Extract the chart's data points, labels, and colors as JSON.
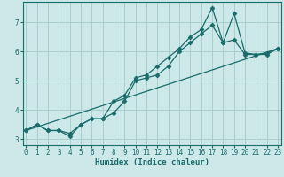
{
  "xlabel": "Humidex (Indice chaleur)",
  "bg_color": "#cce8e8",
  "grid_color": "#aacece",
  "line_color": "#1a6b6b",
  "xlim": [
    0,
    23
  ],
  "ylim": [
    2.8,
    7.7
  ],
  "xticks": [
    0,
    1,
    2,
    3,
    4,
    5,
    6,
    7,
    8,
    9,
    10,
    11,
    12,
    13,
    14,
    15,
    16,
    17,
    18,
    19,
    20,
    21,
    22,
    23
  ],
  "yticks": [
    3,
    4,
    5,
    6,
    7
  ],
  "series": [
    {
      "x": [
        0,
        1,
        2,
        3,
        4,
        5,
        6,
        7,
        8,
        9,
        10,
        11,
        12,
        13,
        14,
        15,
        16,
        17,
        18,
        19,
        20,
        21,
        22,
        23
      ],
      "y": [
        3.3,
        3.5,
        3.3,
        3.3,
        3.2,
        3.5,
        3.7,
        3.7,
        4.3,
        4.5,
        5.1,
        5.2,
        5.5,
        5.8,
        6.1,
        6.5,
        6.75,
        7.5,
        6.3,
        7.3,
        5.95,
        5.9,
        5.95,
        6.1
      ],
      "markers": true
    },
    {
      "x": [
        0,
        1,
        2,
        3,
        4,
        5,
        6,
        7,
        8,
        9,
        10,
        11,
        12,
        13,
        14,
        15,
        16,
        17,
        18,
        19,
        20,
        21,
        22,
        23
      ],
      "y": [
        3.3,
        3.5,
        3.3,
        3.3,
        3.1,
        3.5,
        3.7,
        3.7,
        3.9,
        4.3,
        5.0,
        5.1,
        5.2,
        5.5,
        6.0,
        6.3,
        6.6,
        6.9,
        6.3,
        6.4,
        5.9,
        5.9,
        5.9,
        6.1
      ],
      "markers": true
    },
    {
      "x": [
        0,
        23
      ],
      "y": [
        3.3,
        6.1
      ],
      "markers": false
    }
  ]
}
